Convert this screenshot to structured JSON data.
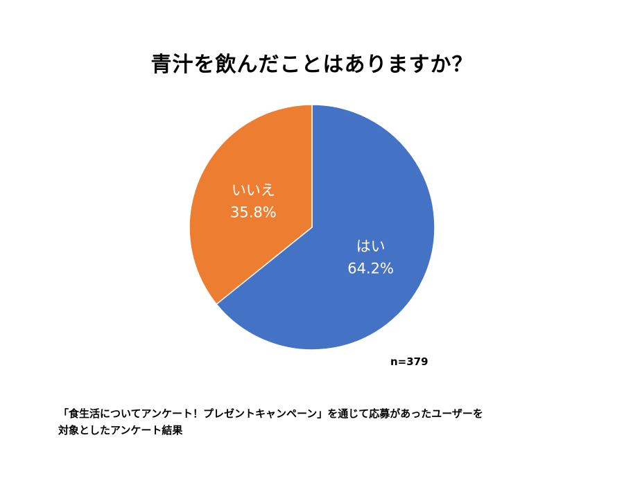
{
  "chart_data": {
    "type": "pie",
    "title": "青汁を飲んだことはありますか？",
    "slices": [
      {
        "label": "はい",
        "value": 64.2,
        "value_label": "64.2%",
        "color": "#4472C4"
      },
      {
        "label": "いいえ",
        "value": 35.8,
        "value_label": "35.8%",
        "color": "#ED7D31"
      }
    ],
    "sample_size": "n=379",
    "legend": "none"
  },
  "caption": {
    "line1": "「食生活についてアンケート！プレゼントキャンペーン」を通じて応募があったユーザーを",
    "line2": "対象としたアンケート結果"
  }
}
